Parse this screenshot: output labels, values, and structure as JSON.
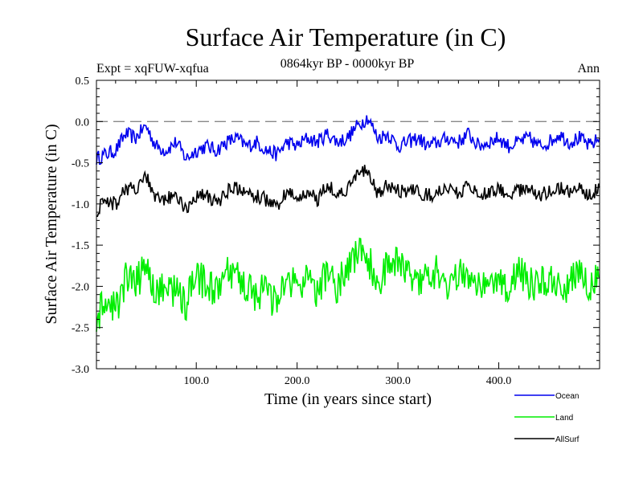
{
  "chart_data": {
    "type": "line",
    "title": "Surface Air Temperature (in C)",
    "subtitle_left": "Expt = xqFUW-xqfua",
    "subtitle_center": "0864kyr BP - 0000kyr BP",
    "subtitle_right": "Ann",
    "xlabel": "Time (in years since start)",
    "ylabel": "Surface Air Temperature (in C)",
    "xlim": [
      1,
      500
    ],
    "ylim": [
      -3.0,
      0.5
    ],
    "x_ticks": [
      100,
      200,
      300,
      400
    ],
    "x_tick_labels": [
      "100.0",
      "200.0",
      "300.0",
      "400.0"
    ],
    "y_ticks": [
      -3.0,
      -2.5,
      -2.0,
      -1.5,
      -1.0,
      -0.5,
      0.0,
      0.5
    ],
    "y_tick_labels": [
      "-3.0",
      "-2.5",
      "-2.0",
      "-1.5",
      "-1.0",
      "-0.5",
      "0.0",
      "0.5"
    ],
    "reference_line": {
      "y": 0.0,
      "style": "dashed",
      "color": "#888888"
    },
    "series": [
      {
        "name": "Ocean",
        "color": "#0000ee",
        "x": [
          1,
          10,
          20,
          30,
          40,
          50,
          60,
          70,
          80,
          90,
          100,
          110,
          120,
          130,
          140,
          150,
          160,
          170,
          180,
          190,
          200,
          210,
          220,
          230,
          240,
          250,
          260,
          270,
          280,
          290,
          300,
          310,
          320,
          330,
          340,
          350,
          360,
          370,
          380,
          390,
          400,
          410,
          420,
          430,
          440,
          450,
          460,
          470,
          480,
          490,
          500
        ],
        "values": [
          -0.45,
          -0.4,
          -0.35,
          -0.15,
          -0.2,
          -0.05,
          -0.3,
          -0.35,
          -0.25,
          -0.45,
          -0.35,
          -0.3,
          -0.35,
          -0.25,
          -0.2,
          -0.3,
          -0.25,
          -0.35,
          -0.4,
          -0.25,
          -0.3,
          -0.2,
          -0.25,
          -0.15,
          -0.25,
          -0.2,
          -0.05,
          0.05,
          -0.2,
          -0.15,
          -0.3,
          -0.25,
          -0.2,
          -0.3,
          -0.25,
          -0.2,
          -0.25,
          -0.15,
          -0.3,
          -0.25,
          -0.2,
          -0.3,
          -0.25,
          -0.2,
          -0.3,
          -0.25,
          -0.15,
          -0.25,
          -0.2,
          -0.3,
          -0.2
        ]
      },
      {
        "name": "Land",
        "color": "#00ee00",
        "x": [
          1,
          10,
          20,
          30,
          40,
          50,
          60,
          70,
          80,
          90,
          100,
          110,
          120,
          130,
          140,
          150,
          160,
          170,
          180,
          190,
          200,
          210,
          220,
          230,
          240,
          250,
          260,
          270,
          280,
          290,
          300,
          310,
          320,
          330,
          340,
          350,
          360,
          370,
          380,
          390,
          400,
          410,
          420,
          430,
          440,
          450,
          460,
          470,
          480,
          490,
          500
        ],
        "values": [
          -2.4,
          -2.2,
          -2.3,
          -1.9,
          -2.0,
          -1.7,
          -2.1,
          -2.0,
          -2.05,
          -2.2,
          -1.9,
          -1.95,
          -2.1,
          -1.85,
          -1.9,
          -2.0,
          -2.1,
          -2.05,
          -2.25,
          -1.9,
          -2.0,
          -1.95,
          -2.1,
          -1.8,
          -2.0,
          -1.75,
          -1.6,
          -1.65,
          -2.0,
          -1.75,
          -1.7,
          -1.8,
          -1.9,
          -1.85,
          -1.8,
          -2.0,
          -1.85,
          -1.95,
          -1.9,
          -2.0,
          -1.85,
          -2.05,
          -1.8,
          -1.95,
          -2.0,
          -1.9,
          -2.05,
          -1.95,
          -1.85,
          -2.0,
          -1.9
        ]
      },
      {
        "name": "AllSurf",
        "color": "#000000",
        "x": [
          1,
          10,
          20,
          30,
          40,
          50,
          60,
          70,
          80,
          90,
          100,
          110,
          120,
          130,
          140,
          150,
          160,
          170,
          180,
          190,
          200,
          210,
          220,
          230,
          240,
          250,
          260,
          270,
          280,
          290,
          300,
          310,
          320,
          330,
          340,
          350,
          360,
          370,
          380,
          390,
          400,
          410,
          420,
          430,
          440,
          450,
          460,
          470,
          480,
          490,
          500
        ],
        "values": [
          -1.1,
          -0.95,
          -1.0,
          -0.8,
          -0.85,
          -0.65,
          -0.95,
          -0.95,
          -0.9,
          -1.05,
          -0.9,
          -0.9,
          -1.0,
          -0.85,
          -0.8,
          -0.9,
          -0.9,
          -0.95,
          -1.05,
          -0.85,
          -0.95,
          -0.85,
          -0.95,
          -0.75,
          -0.9,
          -0.8,
          -0.65,
          -0.6,
          -0.9,
          -0.75,
          -0.85,
          -0.85,
          -0.85,
          -0.9,
          -0.85,
          -0.85,
          -0.85,
          -0.8,
          -0.9,
          -0.85,
          -0.8,
          -0.9,
          -0.85,
          -0.8,
          -0.9,
          -0.85,
          -0.8,
          -0.85,
          -0.8,
          -0.9,
          -0.8
        ]
      }
    ],
    "legend_placement": "bottom-right, outside plot"
  }
}
